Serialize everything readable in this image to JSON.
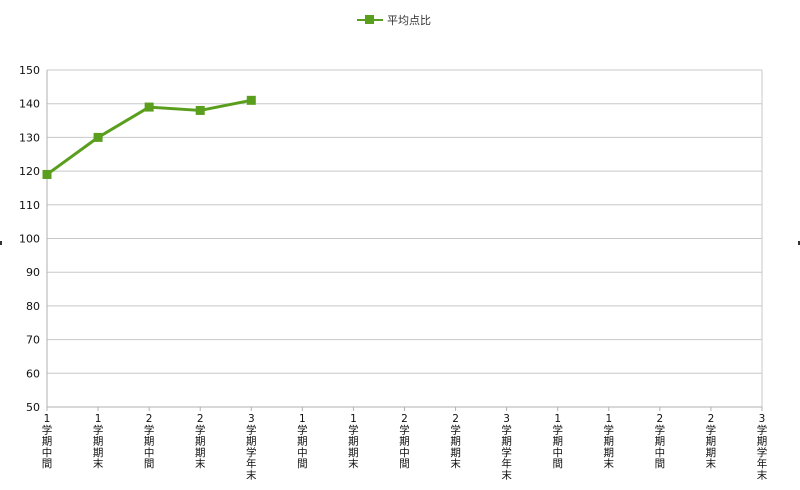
{
  "chart_data": {
    "type": "line",
    "title": "",
    "xlabel": "",
    "ylabel": "",
    "ylim": [
      50,
      150
    ],
    "yticks": [
      50,
      60,
      70,
      80,
      90,
      100,
      110,
      120,
      130,
      140,
      150
    ],
    "categories": [
      "1学期中間",
      "1学期期末",
      "2学期中間",
      "2学期期末",
      "3学期学年末",
      "1学期中間",
      "1学期期末",
      "2学期中間",
      "2学期期末",
      "3学期学年末",
      "1学期中間",
      "1学期期末",
      "2学期中間",
      "2学期期末",
      "3学期学年末"
    ],
    "series": [
      {
        "name": "平均点比",
        "values": [
          119,
          130,
          139,
          138,
          141,
          null,
          null,
          null,
          null,
          null,
          null,
          null,
          null,
          null,
          null
        ]
      }
    ],
    "grid": true,
    "legend_position": "top"
  },
  "colors": {
    "series": "#5a9e1e",
    "grid": "#c8c8c8",
    "axis": "#b0b0b0",
    "text": "#111111"
  }
}
